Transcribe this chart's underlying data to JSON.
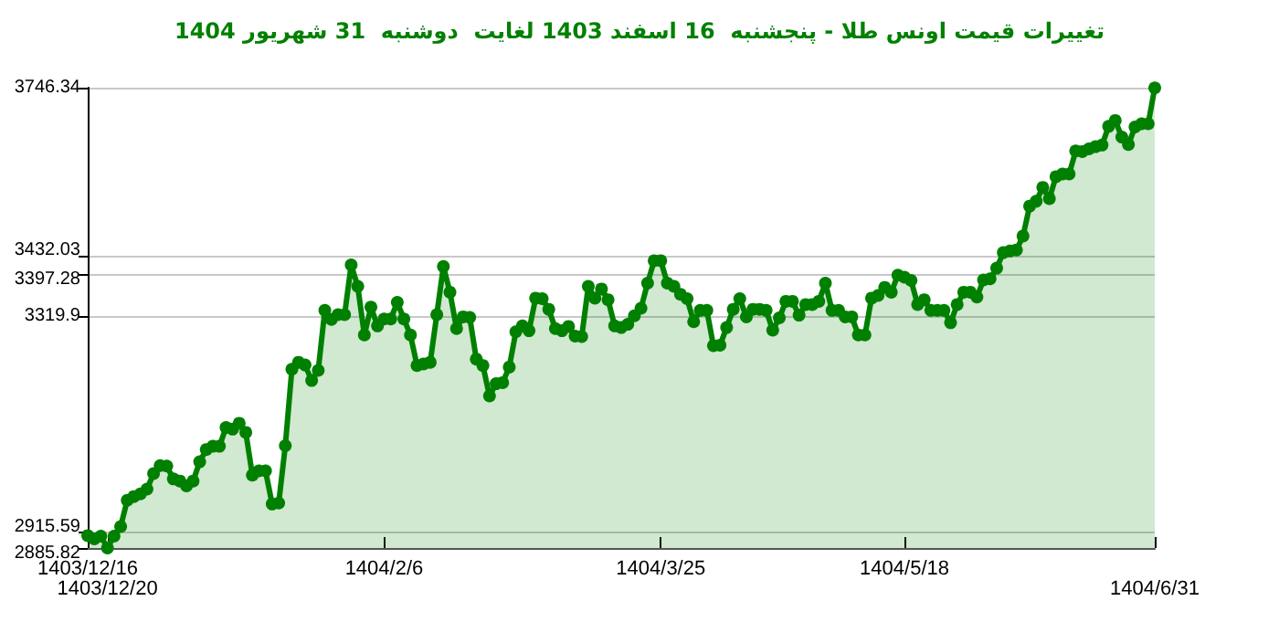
{
  "chart_data": {
    "type": "area",
    "title": "تغییرات قیمت اونس طلا - پنجشنبه  16 اسفند 1403 لغایت  دوشنبه  31 شهریور 1404",
    "categories": [
      "1403/12/16",
      null,
      null,
      "1403/12/20",
      null,
      null,
      null,
      null,
      null,
      null,
      null,
      null,
      null,
      null,
      null,
      null,
      null,
      null,
      null,
      null,
      null,
      null,
      null,
      null,
      null,
      null,
      null,
      null,
      null,
      null,
      null,
      null,
      null,
      null,
      null,
      null,
      null,
      null,
      null,
      null,
      null,
      null,
      null,
      null,
      null,
      "1404/2/6",
      null,
      null,
      null,
      null,
      null,
      null,
      null,
      null,
      null,
      null,
      null,
      null,
      null,
      null,
      null,
      null,
      null,
      null,
      null,
      null,
      null,
      null,
      null,
      null,
      null,
      null,
      null,
      null,
      null,
      null,
      null,
      null,
      null,
      null,
      null,
      null,
      null,
      null,
      null,
      null,
      null,
      "1404/3/25",
      null,
      null,
      null,
      null,
      null,
      null,
      null,
      null,
      null,
      null,
      null,
      null,
      null,
      null,
      null,
      null,
      null,
      null,
      null,
      null,
      null,
      null,
      null,
      null,
      null,
      null,
      null,
      null,
      null,
      null,
      null,
      null,
      null,
      null,
      null,
      null,
      "1404/5/18",
      null,
      null,
      null,
      null,
      null,
      null,
      null,
      null,
      null,
      null,
      null,
      null,
      null,
      null,
      null,
      null,
      null,
      null,
      null,
      null,
      null,
      null,
      null,
      null,
      null,
      null,
      null,
      null,
      null,
      null,
      null,
      null,
      null,
      null,
      null,
      null,
      null,
      "1404/6/31"
    ],
    "series": [
      {
        "color": "#008000",
        "values": [
          2909,
          2903,
          2908,
          2886,
          2908,
          2926,
          2975,
          2982,
          2987,
          2996,
          3025,
          3040,
          3039,
          3015,
          3011,
          3002,
          3011,
          3047,
          3070,
          3076,
          3076,
          3111,
          3108,
          3119,
          3102,
          3022,
          3030,
          3030,
          2968,
          2970,
          3077,
          3220,
          3233,
          3228,
          3199,
          3218,
          3330,
          3313,
          3322,
          3322,
          3415,
          3375,
          3284,
          3336,
          3301,
          3314,
          3314,
          3345,
          3314,
          3284,
          3227,
          3230,
          3233,
          3322,
          3412,
          3364,
          3296,
          3318,
          3317,
          3239,
          3227,
          3170,
          3193,
          3195,
          3224,
          3290,
          3301,
          3292,
          3353,
          3352,
          3332,
          3296,
          3292,
          3300,
          3282,
          3281,
          3375,
          3353,
          3370,
          3350,
          3301,
          3298,
          3304,
          3320,
          3334,
          3381,
          3423,
          3423,
          3381,
          3375,
          3360,
          3352,
          3309,
          3330,
          3330,
          3264,
          3265,
          3298,
          3332,
          3352,
          3318,
          3332,
          3332,
          3330,
          3293,
          3316,
          3347,
          3347,
          3321,
          3341,
          3341,
          3347,
          3381,
          3330,
          3330,
          3318,
          3318,
          3284,
          3284,
          3353,
          3358,
          3373,
          3364,
          3396,
          3392,
          3386,
          3341,
          3350,
          3330,
          3330,
          3330,
          3307,
          3341,
          3364,
          3364,
          3355,
          3387,
          3389,
          3409,
          3438,
          3441,
          3443,
          3469,
          3525,
          3534,
          3560,
          3539,
          3580,
          3585,
          3585,
          3628,
          3627,
          3632,
          3636,
          3639,
          3674,
          3685,
          3654,
          3640,
          3673,
          3679,
          3679,
          3746
        ]
      }
    ],
    "ylim": [
      2885.82,
      3746.34
    ],
    "yticks": [
      2885.82,
      2915.59,
      3319.9,
      3397.28,
      3432.03,
      3746.34
    ],
    "grid": "y",
    "marker": "circle",
    "line_style": "solid"
  }
}
